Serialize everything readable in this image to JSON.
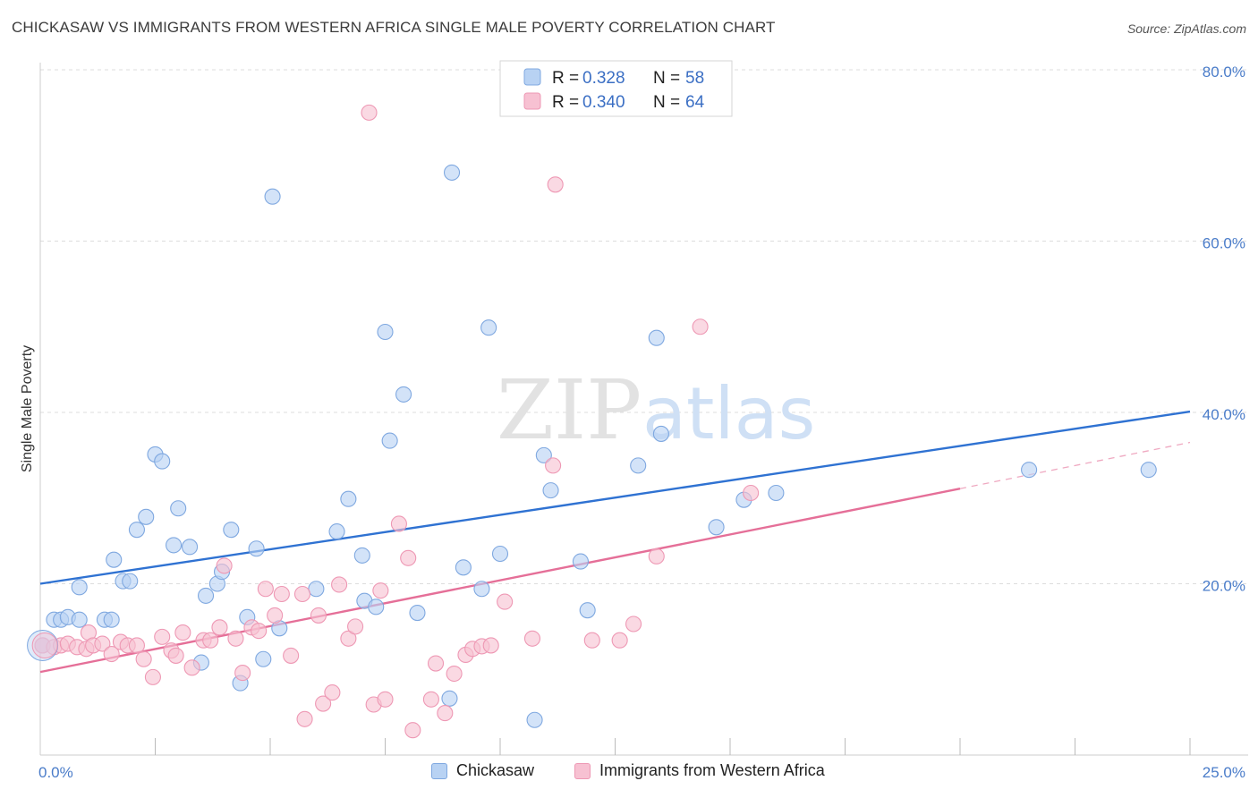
{
  "title": "CHICKASAW VS IMMIGRANTS FROM WESTERN AFRICA SINGLE MALE POVERTY CORRELATION CHART",
  "source": "Source: ZipAtlas.com",
  "watermark": {
    "zip": "ZIP",
    "atlas": "atlas"
  },
  "colors": {
    "blue_fill": "#b8d2f3",
    "blue_stroke": "#7fa8e0",
    "blue_line": "#2f72d2",
    "pink_fill": "#f7c1d2",
    "pink_stroke": "#ee98b4",
    "pink_line": "#e56f98",
    "grid": "#dddddd",
    "tick_text": "#4a7cc9"
  },
  "legend": {
    "rows": [
      {
        "r_label": "R =",
        "r_value": "0.328",
        "n_label": "N =",
        "n_value": "58"
      },
      {
        "r_label": "R =",
        "r_value": "0.340",
        "n_label": "N =",
        "n_value": "64"
      }
    ]
  },
  "bottom_legend": [
    "Chickasaw",
    "Immigrants from Western Africa"
  ],
  "chart_data": {
    "type": "scatter",
    "title": "CHICKASAW VS IMMIGRANTS FROM WESTERN AFRICA SINGLE MALE POVERTY CORRELATION CHART",
    "xlabel": "",
    "ylabel": "Single Male Poverty",
    "xlim": [
      0,
      25
    ],
    "ylim": [
      0,
      80
    ],
    "x_tick_labels": [
      "0.0%",
      "25.0%"
    ],
    "y_ticks": [
      20,
      40,
      60,
      80
    ],
    "y_tick_labels": [
      "20.0%",
      "40.0%",
      "60.0%",
      "80.0%"
    ],
    "grid": true,
    "legend_position": "top-center",
    "series": [
      {
        "name": "Chickasaw",
        "r": 0.328,
        "n": 58,
        "trend": {
          "x": [
            0,
            25
          ],
          "y": [
            20.0,
            40.1
          ]
        },
        "points": [
          [
            0.05,
            12.8
          ],
          [
            0.3,
            15.8
          ],
          [
            0.45,
            15.8
          ],
          [
            0.6,
            16.1
          ],
          [
            0.85,
            15.8
          ],
          [
            1.4,
            15.8
          ],
          [
            0.85,
            19.6
          ],
          [
            1.55,
            15.8
          ],
          [
            1.6,
            22.8
          ],
          [
            1.8,
            20.3
          ],
          [
            1.95,
            20.3
          ],
          [
            2.1,
            26.3
          ],
          [
            2.3,
            27.8
          ],
          [
            2.5,
            35.1
          ],
          [
            2.65,
            34.3
          ],
          [
            2.9,
            24.5
          ],
          [
            3.0,
            28.8
          ],
          [
            3.25,
            24.3
          ],
          [
            3.5,
            10.8
          ],
          [
            3.6,
            18.6
          ],
          [
            3.85,
            20.0
          ],
          [
            3.95,
            21.4
          ],
          [
            4.15,
            26.3
          ],
          [
            4.35,
            8.4
          ],
          [
            4.5,
            16.1
          ],
          [
            4.7,
            24.1
          ],
          [
            4.85,
            11.2
          ],
          [
            5.05,
            65.2
          ],
          [
            5.2,
            14.8
          ],
          [
            6.0,
            19.4
          ],
          [
            6.45,
            26.1
          ],
          [
            6.7,
            29.9
          ],
          [
            7.0,
            23.3
          ],
          [
            7.05,
            18.0
          ],
          [
            7.3,
            17.3
          ],
          [
            7.5,
            49.4
          ],
          [
            7.6,
            36.7
          ],
          [
            7.9,
            42.1
          ],
          [
            8.2,
            16.6
          ],
          [
            8.9,
            6.6
          ],
          [
            8.95,
            68.0
          ],
          [
            9.2,
            21.9
          ],
          [
            9.6,
            19.4
          ],
          [
            9.75,
            49.9
          ],
          [
            10.0,
            23.5
          ],
          [
            10.75,
            4.1
          ],
          [
            10.95,
            35.0
          ],
          [
            11.1,
            30.9
          ],
          [
            11.75,
            22.6
          ],
          [
            11.9,
            16.9
          ],
          [
            13.0,
            33.8
          ],
          [
            13.4,
            48.7
          ],
          [
            13.5,
            37.5
          ],
          [
            14.7,
            26.6
          ],
          [
            15.3,
            29.8
          ],
          [
            16.0,
            30.6
          ],
          [
            21.5,
            33.3
          ],
          [
            24.1,
            33.3
          ]
        ]
      },
      {
        "name": "Immigrants from Western Africa",
        "r": 0.34,
        "n": 64,
        "trend": {
          "x": [
            0,
            20
          ],
          "y": [
            9.7,
            31.1
          ]
        },
        "trend_extension": {
          "x": [
            20,
            25
          ],
          "y": [
            31.1,
            36.5
          ]
        },
        "points": [
          [
            0.05,
            12.8
          ],
          [
            0.3,
            12.6
          ],
          [
            0.45,
            12.8
          ],
          [
            0.6,
            13.0
          ],
          [
            0.8,
            12.6
          ],
          [
            1.0,
            12.4
          ],
          [
            1.05,
            14.3
          ],
          [
            1.15,
            12.8
          ],
          [
            1.35,
            13.0
          ],
          [
            1.55,
            11.8
          ],
          [
            1.75,
            13.2
          ],
          [
            1.9,
            12.8
          ],
          [
            2.1,
            12.8
          ],
          [
            2.25,
            11.2
          ],
          [
            2.45,
            9.1
          ],
          [
            2.65,
            13.8
          ],
          [
            2.85,
            12.2
          ],
          [
            2.95,
            11.6
          ],
          [
            3.1,
            14.3
          ],
          [
            3.3,
            10.2
          ],
          [
            3.55,
            13.4
          ],
          [
            3.7,
            13.4
          ],
          [
            3.9,
            14.9
          ],
          [
            4.0,
            22.1
          ],
          [
            4.25,
            13.6
          ],
          [
            4.4,
            9.6
          ],
          [
            4.6,
            14.9
          ],
          [
            4.75,
            14.5
          ],
          [
            4.9,
            19.4
          ],
          [
            5.1,
            16.3
          ],
          [
            5.25,
            18.8
          ],
          [
            5.45,
            11.6
          ],
          [
            5.7,
            18.8
          ],
          [
            5.75,
            4.2
          ],
          [
            6.05,
            16.3
          ],
          [
            6.15,
            6.0
          ],
          [
            6.35,
            7.3
          ],
          [
            6.5,
            19.9
          ],
          [
            6.7,
            13.6
          ],
          [
            6.85,
            15.0
          ],
          [
            7.25,
            5.9
          ],
          [
            7.4,
            19.2
          ],
          [
            7.5,
            6.5
          ],
          [
            7.8,
            27.0
          ],
          [
            8.0,
            23.0
          ],
          [
            8.1,
            2.9
          ],
          [
            8.6,
            10.7
          ],
          [
            8.5,
            6.5
          ],
          [
            8.8,
            4.9
          ],
          [
            9.0,
            9.5
          ],
          [
            9.25,
            11.7
          ],
          [
            9.4,
            12.4
          ],
          [
            9.6,
            12.7
          ],
          [
            9.8,
            12.8
          ],
          [
            10.1,
            17.9
          ],
          [
            10.7,
            13.6
          ],
          [
            11.15,
            33.8
          ],
          [
            11.2,
            66.6
          ],
          [
            12.0,
            13.4
          ],
          [
            12.6,
            13.4
          ],
          [
            12.9,
            15.3
          ],
          [
            13.4,
            23.2
          ],
          [
            14.35,
            50.0
          ],
          [
            15.45,
            30.6
          ]
        ],
        "extra_points": [
          [
            7.15,
            75.0
          ]
        ]
      }
    ]
  }
}
